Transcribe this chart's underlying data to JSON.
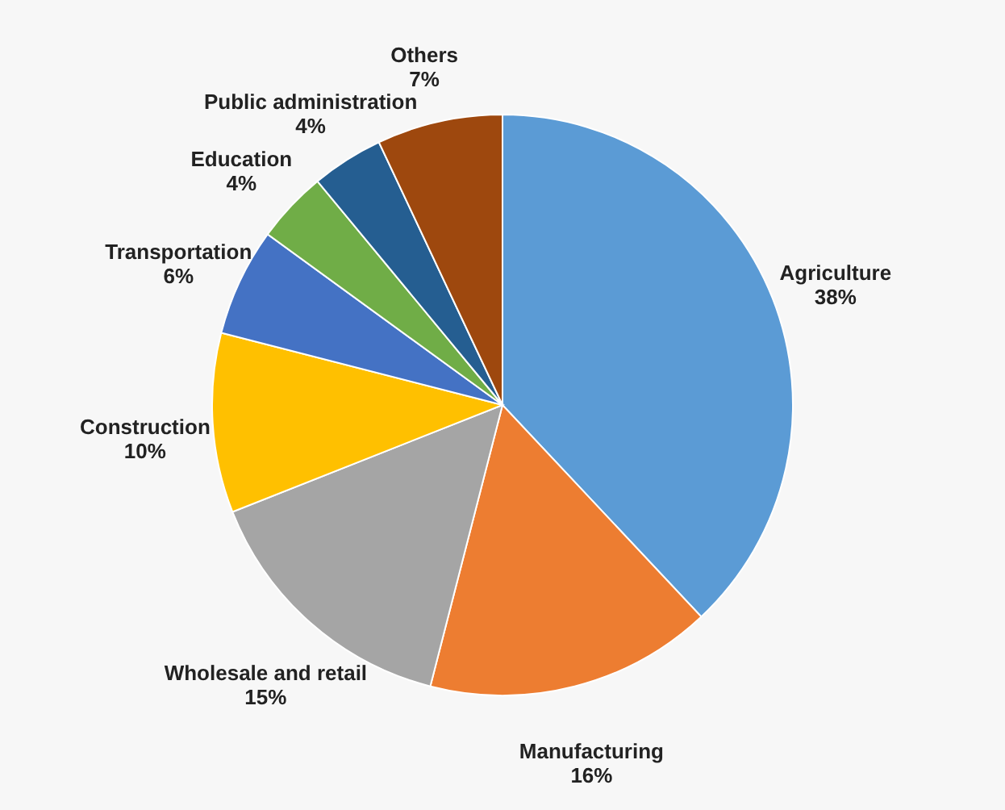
{
  "chart_data": {
    "type": "pie",
    "categories": [
      "Agriculture",
      "Manufacturing",
      "Wholesale and retail",
      "Construction",
      "Transportation",
      "Education",
      "Public administration",
      "Others"
    ],
    "values": [
      38,
      16,
      15,
      10,
      6,
      4,
      4,
      7
    ],
    "colors": [
      "#5b9bd5",
      "#ed7d31",
      "#a5a5a5",
      "#ffc000",
      "#4472c4",
      "#70ad47",
      "#255e91",
      "#9e480e"
    ],
    "value_labels": [
      "38%",
      "16%",
      "15%",
      "10%",
      "6%",
      "4%",
      "4%",
      "7%"
    ]
  }
}
